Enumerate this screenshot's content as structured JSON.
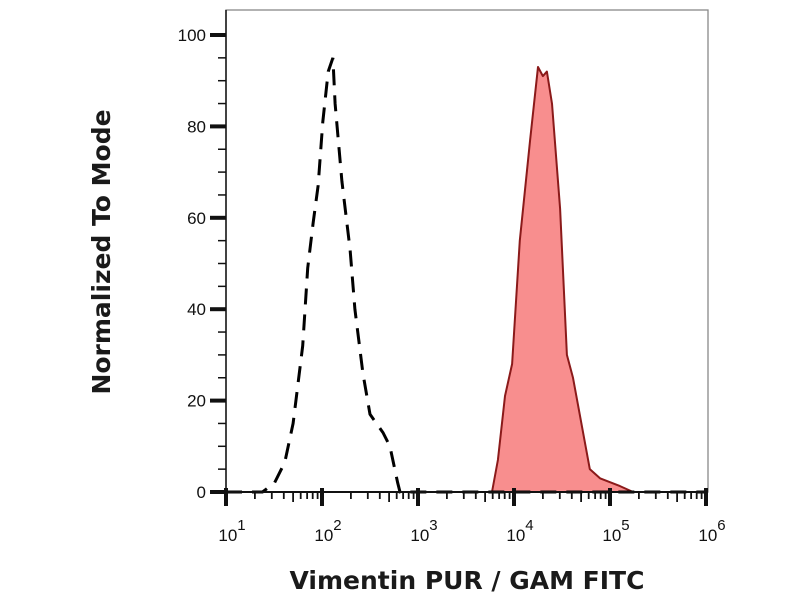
{
  "chart_data": {
    "type": "area",
    "title": "",
    "xlabel": "Vimentin PUR / GAM FITC",
    "ylabel": "Normalized To Mode",
    "x_scale": "log",
    "xlim": [
      10,
      1000000
    ],
    "ylim": [
      0,
      100
    ],
    "x_ticks": [
      {
        "base": "10",
        "exp": "1"
      },
      {
        "base": "10",
        "exp": "2"
      },
      {
        "base": "10",
        "exp": "3"
      },
      {
        "base": "10",
        "exp": "4"
      },
      {
        "base": "10",
        "exp": "5"
      },
      {
        "base": "10",
        "exp": "6"
      }
    ],
    "y_ticks": [
      "0",
      "20",
      "40",
      "60",
      "80",
      "100"
    ],
    "grid": false,
    "series": [
      {
        "style": "dashed-outline",
        "color": "#000000",
        "x": [
          10,
          24,
          32,
          41,
          50,
          63,
          71,
          81,
          91,
          102,
          116,
          130,
          137,
          161,
          196,
          220,
          267,
          316,
          432,
          510,
          614,
          650,
          1000000
        ],
        "y": [
          0,
          0,
          2,
          6.5,
          15,
          32,
          49,
          59,
          67,
          81,
          92,
          95,
          85,
          68,
          53,
          40,
          26,
          17,
          13,
          10,
          2,
          0,
          0
        ]
      },
      {
        "style": "filled",
        "color": "#8b1a1a",
        "fill": "#f88e8e",
        "x": [
          10,
          5900,
          6800,
          8050,
          9550,
          11500,
          14700,
          17800,
          20000,
          22000,
          24900,
          30200,
          35600,
          41200,
          61600,
          78700,
          127000,
          174000,
          1000000
        ],
        "y": [
          0,
          0,
          7,
          21,
          28,
          55,
          77,
          93,
          91,
          92,
          85,
          62,
          30,
          25,
          5,
          3,
          1.3,
          0,
          0
        ]
      }
    ]
  }
}
